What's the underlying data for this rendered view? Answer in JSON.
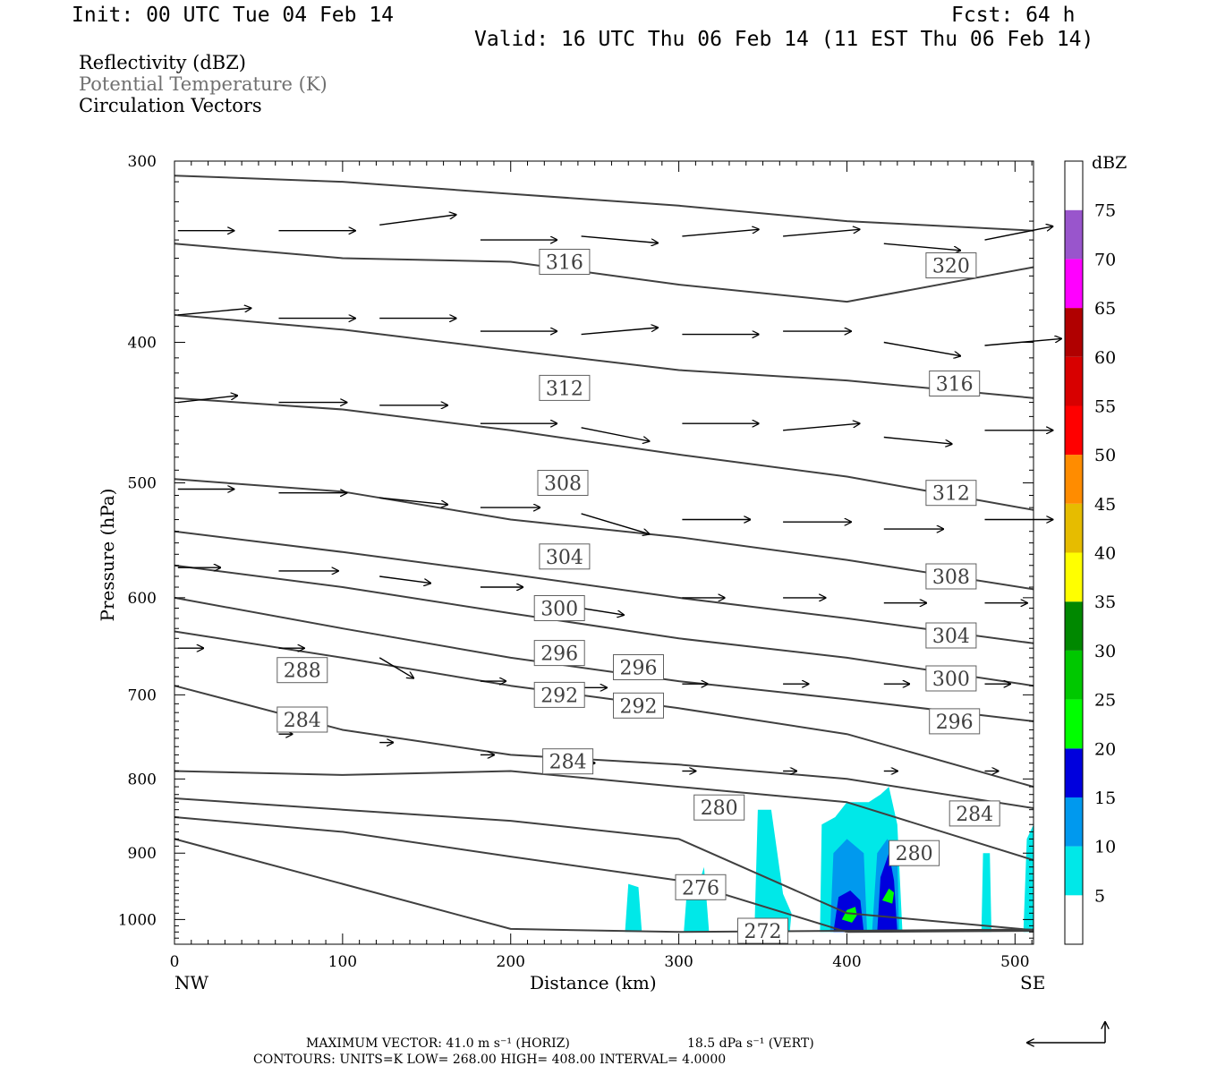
{
  "header": {
    "init": "Init: 00 UTC Tue 04 Feb 14",
    "fcst": "Fcst:   64 h",
    "valid": "Valid: 16 UTC Thu 06 Feb 14 (11 EST Thu 06 Feb 14)"
  },
  "fields": {
    "reflectivity": "Reflectivity (dBZ)",
    "theta": "Potential Temperature (K)",
    "vectors": "Circulation Vectors"
  },
  "chart_data": {
    "type": "cross-section",
    "xlabel": "Distance (km)",
    "ylabel": "Pressure (hPa)",
    "x_left_label": "NW",
    "x_right_label": "SE",
    "xlim": [
      0,
      511
    ],
    "ylim": [
      1040,
      300
    ],
    "y_log": true,
    "x_ticks": [
      0,
      100,
      200,
      300,
      400,
      500
    ],
    "y_ticks": [
      300,
      400,
      500,
      600,
      700,
      800,
      900,
      1000
    ],
    "colorbar": {
      "title": "dBZ",
      "levels": [
        5,
        10,
        15,
        20,
        25,
        30,
        35,
        40,
        45,
        50,
        55,
        60,
        65,
        70,
        75
      ],
      "colors": [
        "#ffffff",
        "#00e8e8",
        "#0099ee",
        "#0000dd",
        "#00ff00",
        "#00c800",
        "#008800",
        "#ffff00",
        "#e6bc00",
        "#ff8c00",
        "#ff0000",
        "#d80000",
        "#b00000",
        "#ff00ff",
        "#9955cc",
        "#ffffff"
      ]
    },
    "theta_contours": [
      {
        "label": "320",
        "points": [
          [
            0,
            307
          ],
          [
            100,
            310
          ],
          [
            200,
            316
          ],
          [
            300,
            322
          ],
          [
            400,
            330
          ],
          [
            511,
            335
          ]
        ]
      },
      {
        "label": "316",
        "points": [
          [
            0,
            342
          ],
          [
            100,
            350
          ],
          [
            200,
            352
          ],
          [
            300,
            365
          ],
          [
            400,
            375
          ],
          [
            511,
            355
          ]
        ]
      },
      {
        "label": "316",
        "points": [
          [
            0,
            383
          ],
          [
            100,
            392
          ],
          [
            200,
            405
          ],
          [
            300,
            418
          ],
          [
            400,
            425
          ],
          [
            511,
            437
          ]
        ]
      },
      {
        "label": "312",
        "points": [
          [
            0,
            437
          ],
          [
            100,
            445
          ],
          [
            200,
            460
          ],
          [
            300,
            478
          ],
          [
            400,
            495
          ],
          [
            511,
            522
          ]
        ]
      },
      {
        "label": "308",
        "points": [
          [
            0,
            497
          ],
          [
            100,
            507
          ],
          [
            200,
            530
          ],
          [
            300,
            545
          ],
          [
            400,
            565
          ],
          [
            511,
            592
          ]
        ]
      },
      {
        "label": "304",
        "points": [
          [
            0,
            540
          ],
          [
            100,
            558
          ],
          [
            200,
            578
          ],
          [
            300,
            600
          ],
          [
            400,
            620
          ],
          [
            511,
            645
          ]
        ]
      },
      {
        "label": "300",
        "points": [
          [
            0,
            570
          ],
          [
            100,
            590
          ],
          [
            200,
            615
          ],
          [
            300,
            640
          ],
          [
            400,
            660
          ],
          [
            511,
            690
          ]
        ]
      },
      {
        "label": "296",
        "points": [
          [
            0,
            600
          ],
          [
            100,
            630
          ],
          [
            200,
            660
          ],
          [
            300,
            685
          ],
          [
            400,
            705
          ],
          [
            511,
            730
          ]
        ]
      },
      {
        "label": "292",
        "points": [
          [
            0,
            633
          ],
          [
            100,
            660
          ],
          [
            200,
            690
          ],
          [
            300,
            715
          ],
          [
            400,
            745
          ],
          [
            511,
            810
          ]
        ]
      },
      {
        "label": "288",
        "points": [
          [
            0,
            690
          ],
          [
            100,
            740
          ],
          [
            200,
            770
          ],
          [
            300,
            782
          ],
          [
            400,
            800
          ],
          [
            511,
            838
          ]
        ]
      },
      {
        "label": "284",
        "points": [
          [
            0,
            790
          ],
          [
            100,
            795
          ],
          [
            200,
            790
          ],
          [
            300,
            810
          ],
          [
            400,
            830
          ],
          [
            511,
            910
          ]
        ]
      },
      {
        "label": "280",
        "points": [
          [
            0,
            825
          ],
          [
            100,
            840
          ],
          [
            200,
            855
          ],
          [
            300,
            880
          ],
          [
            400,
            990
          ],
          [
            511,
            1017
          ]
        ]
      },
      {
        "label": "276",
        "points": [
          [
            0,
            850
          ],
          [
            100,
            870
          ],
          [
            200,
            905
          ],
          [
            300,
            940
          ],
          [
            400,
            1020
          ],
          [
            511,
            1018
          ]
        ]
      },
      {
        "label": "272",
        "points": [
          [
            0,
            880
          ],
          [
            100,
            945
          ],
          [
            200,
            1015
          ],
          [
            300,
            1020
          ],
          [
            400,
            1018
          ],
          [
            511,
            1016
          ]
        ]
      }
    ],
    "contour_labels": [
      {
        "text": "316",
        "x": 232,
        "p": 352
      },
      {
        "text": "320",
        "x": 462,
        "p": 354
      },
      {
        "text": "312",
        "x": 232,
        "p": 430
      },
      {
        "text": "316",
        "x": 464,
        "p": 427
      },
      {
        "text": "308",
        "x": 231,
        "p": 500
      },
      {
        "text": "312",
        "x": 462,
        "p": 508
      },
      {
        "text": "304",
        "x": 232,
        "p": 562
      },
      {
        "text": "308",
        "x": 462,
        "p": 580
      },
      {
        "text": "300",
        "x": 229,
        "p": 610
      },
      {
        "text": "304",
        "x": 462,
        "p": 637
      },
      {
        "text": "296",
        "x": 229,
        "p": 655
      },
      {
        "text": "296",
        "x": 276,
        "p": 670
      },
      {
        "text": "288",
        "x": 76,
        "p": 673
      },
      {
        "text": "300",
        "x": 462,
        "p": 682
      },
      {
        "text": "292",
        "x": 229,
        "p": 700
      },
      {
        "text": "292",
        "x": 276,
        "p": 712
      },
      {
        "text": "284",
        "x": 76,
        "p": 728
      },
      {
        "text": "296",
        "x": 464,
        "p": 730
      },
      {
        "text": "284",
        "x": 234,
        "p": 778
      },
      {
        "text": "280",
        "x": 324,
        "p": 837
      },
      {
        "text": "284",
        "x": 476,
        "p": 845
      },
      {
        "text": "280",
        "x": 440,
        "p": 900
      },
      {
        "text": "276",
        "x": 313,
        "p": 950
      },
      {
        "text": "272",
        "x": 350,
        "p": 1018
      }
    ],
    "vectors": [
      [
        0,
        335,
        33,
        0
      ],
      [
        60,
        335,
        45,
        0
      ],
      [
        120,
        332,
        45,
        -6
      ],
      [
        180,
        340,
        45,
        0
      ],
      [
        240,
        338,
        45,
        4
      ],
      [
        300,
        338,
        45,
        -4
      ],
      [
        360,
        338,
        45,
        -4
      ],
      [
        420,
        342,
        45,
        4
      ],
      [
        480,
        340,
        40,
        -8
      ],
      [
        0,
        383,
        43,
        -4
      ],
      [
        60,
        385,
        45,
        0
      ],
      [
        120,
        385,
        45,
        0
      ],
      [
        180,
        393,
        45,
        0
      ],
      [
        240,
        395,
        45,
        -4
      ],
      [
        300,
        395,
        45,
        0
      ],
      [
        360,
        393,
        40,
        0
      ],
      [
        420,
        400,
        45,
        8
      ],
      [
        480,
        402,
        45,
        -4
      ],
      [
        0,
        440,
        35,
        -4
      ],
      [
        60,
        440,
        40,
        0
      ],
      [
        120,
        442,
        40,
        0
      ],
      [
        180,
        455,
        45,
        0
      ],
      [
        240,
        458,
        40,
        8
      ],
      [
        300,
        455,
        45,
        0
      ],
      [
        360,
        460,
        45,
        -4
      ],
      [
        420,
        465,
        40,
        4
      ],
      [
        480,
        460,
        40,
        0
      ],
      [
        0,
        505,
        33,
        0
      ],
      [
        60,
        508,
        40,
        0
      ],
      [
        120,
        512,
        40,
        4
      ],
      [
        180,
        520,
        35,
        0
      ],
      [
        240,
        525,
        40,
        12
      ],
      [
        300,
        530,
        40,
        0
      ],
      [
        360,
        532,
        40,
        0
      ],
      [
        420,
        538,
        35,
        0
      ],
      [
        480,
        530,
        40,
        0
      ],
      [
        0,
        572,
        25,
        0
      ],
      [
        60,
        575,
        35,
        0
      ],
      [
        120,
        580,
        30,
        4
      ],
      [
        180,
        590,
        25,
        0
      ],
      [
        240,
        610,
        25,
        4
      ],
      [
        300,
        600,
        25,
        0
      ],
      [
        360,
        600,
        25,
        0
      ],
      [
        420,
        605,
        25,
        0
      ],
      [
        480,
        605,
        25,
        0
      ],
      [
        0,
        650,
        15,
        0
      ],
      [
        60,
        650,
        15,
        0
      ],
      [
        120,
        660,
        20,
        12
      ],
      [
        180,
        685,
        15,
        0
      ],
      [
        240,
        692,
        15,
        0
      ],
      [
        300,
        688,
        15,
        0
      ],
      [
        360,
        688,
        15,
        0
      ],
      [
        420,
        688,
        15,
        0
      ],
      [
        480,
        688,
        15,
        0
      ],
      [
        60,
        745,
        8,
        0
      ],
      [
        120,
        755,
        8,
        0
      ],
      [
        180,
        770,
        8,
        0
      ],
      [
        240,
        780,
        8,
        0
      ],
      [
        300,
        790,
        8,
        0
      ],
      [
        360,
        790,
        8,
        0
      ],
      [
        420,
        790,
        8,
        0
      ],
      [
        480,
        790,
        8,
        0
      ]
    ],
    "reflectivity_cells": [
      {
        "level": 5,
        "points": [
          [
            268,
            1020
          ],
          [
            270,
            945
          ],
          [
            276,
            950
          ],
          [
            278,
            1020
          ]
        ]
      },
      {
        "level": 5,
        "points": [
          [
            303,
            1020
          ],
          [
            305,
            950
          ],
          [
            310,
            960
          ],
          [
            315,
            920
          ],
          [
            318,
            1020
          ]
        ]
      },
      {
        "level": 5,
        "points": [
          [
            345,
            1020
          ],
          [
            347,
            840
          ],
          [
            355,
            840
          ],
          [
            362,
            960
          ],
          [
            367,
            990
          ],
          [
            366,
            1020
          ]
        ]
      },
      {
        "level": 5,
        "points": [
          [
            384,
            1020
          ],
          [
            385,
            860
          ],
          [
            393,
            850
          ],
          [
            400,
            830
          ],
          [
            413,
            830
          ],
          [
            420,
            820
          ],
          [
            425,
            810
          ],
          [
            430,
            860
          ],
          [
            433,
            1020
          ]
        ]
      },
      {
        "level": 10,
        "points": [
          [
            390,
            1020
          ],
          [
            392,
            900
          ],
          [
            400,
            880
          ],
          [
            410,
            900
          ],
          [
            412,
            1020
          ]
        ]
      },
      {
        "level": 10,
        "points": [
          [
            415,
            1020
          ],
          [
            418,
            900
          ],
          [
            424,
            880
          ],
          [
            430,
            900
          ],
          [
            431,
            1020
          ]
        ]
      },
      {
        "level": 15,
        "points": [
          [
            392,
            1020
          ],
          [
            395,
            965
          ],
          [
            402,
            955
          ],
          [
            408,
            970
          ],
          [
            410,
            1020
          ]
        ]
      },
      {
        "level": 15,
        "points": [
          [
            418,
            1020
          ],
          [
            420,
            935
          ],
          [
            425,
            900
          ],
          [
            428,
            940
          ],
          [
            430,
            1020
          ]
        ]
      },
      {
        "level": 20,
        "points": [
          [
            397,
            1000
          ],
          [
            400,
            985
          ],
          [
            405,
            980
          ],
          [
            406,
            993
          ],
          [
            403,
            1005
          ]
        ]
      },
      {
        "level": 20,
        "points": [
          [
            421,
            970
          ],
          [
            425,
            952
          ],
          [
            428,
            958
          ],
          [
            427,
            975
          ]
        ]
      },
      {
        "level": 5,
        "points": [
          [
            480,
            1020
          ],
          [
            481,
            900
          ],
          [
            485,
            900
          ],
          [
            486,
            1020
          ]
        ]
      },
      {
        "level": 5,
        "points": [
          [
            505,
            1020
          ],
          [
            507,
            880
          ],
          [
            511,
            860
          ],
          [
            511,
            1020
          ]
        ]
      }
    ]
  },
  "footer": {
    "maxvec": "MAXIMUM VECTOR:  41.0 m s⁻¹ (HORIZ)",
    "maxvec_vert": "18.5 dPa s⁻¹ (VERT)",
    "contours": "CONTOURS:  UNITS=K  LOW=  268.00       HIGH=  408.00       INTERVAL=    4.0000"
  }
}
